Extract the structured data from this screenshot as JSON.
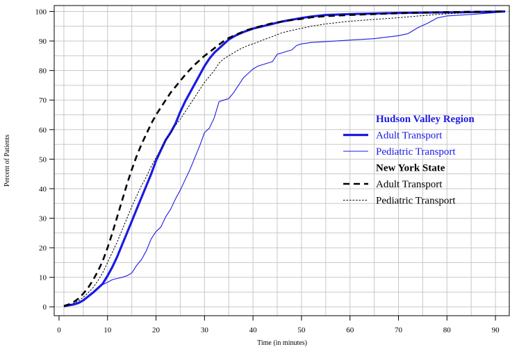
{
  "chart_data": {
    "type": "line",
    "title": "",
    "xlabel": "Time (in minutes)",
    "ylabel": "Percent of Patients",
    "xlim": [
      -1,
      93
    ],
    "ylim": [
      -3,
      102
    ],
    "xticks": [
      0,
      10,
      20,
      30,
      40,
      50,
      60,
      70,
      80,
      90
    ],
    "yticks": [
      0,
      10,
      20,
      30,
      40,
      50,
      60,
      70,
      80,
      90,
      100
    ],
    "xtick_labels": [
      "0",
      "10",
      "20",
      "30",
      "40",
      "50",
      "60",
      "70",
      "80",
      "90"
    ],
    "ytick_labels": [
      "0",
      "10",
      "20",
      "30",
      "40",
      "50",
      "60",
      "70",
      "80",
      "90",
      "100"
    ],
    "vgrid": [
      1,
      5,
      10,
      15,
      20,
      25,
      30,
      35,
      40,
      45,
      50,
      55,
      60,
      65,
      70,
      75,
      80,
      85,
      90
    ],
    "hgrid": [
      0,
      5,
      10,
      15,
      20,
      25,
      30,
      35,
      40,
      45,
      50,
      55,
      60,
      65,
      70,
      75,
      80,
      85,
      90,
      95,
      100
    ],
    "grid": true,
    "legend_position": "right",
    "legend": {
      "groups": [
        {
          "heading": "Hudson Valley Region",
          "heading_color": "#1a1ae6",
          "entries": [
            {
              "label": "Adult Transport",
              "series": 0
            },
            {
              "label": "Pediatric Transport",
              "series": 1
            }
          ]
        },
        {
          "heading": "New York State",
          "heading_color": "#000000",
          "entries": [
            {
              "label": "Adult Transport",
              "series": 2
            },
            {
              "label": "Pediatric Transport",
              "series": 3
            }
          ]
        }
      ]
    },
    "series": [
      {
        "color": "#1a1ae6",
        "width": 3.2,
        "dash": "",
        "points": [
          [
            1,
            0.2
          ],
          [
            2,
            0.5
          ],
          [
            3,
            0.8
          ],
          [
            4,
            1.3
          ],
          [
            5,
            2.2
          ],
          [
            6,
            3.5
          ],
          [
            7,
            4.8
          ],
          [
            8,
            6.3
          ],
          [
            9,
            7.8
          ],
          [
            10,
            10.5
          ],
          [
            11,
            13.5
          ],
          [
            12,
            17
          ],
          [
            13,
            21
          ],
          [
            14,
            25
          ],
          [
            15,
            29
          ],
          [
            16,
            33
          ],
          [
            17,
            37
          ],
          [
            18,
            41
          ],
          [
            19,
            45
          ],
          [
            20,
            49.5
          ],
          [
            21,
            53
          ],
          [
            22,
            56.5
          ],
          [
            23,
            59
          ],
          [
            24,
            62
          ],
          [
            25,
            66
          ],
          [
            26,
            69.5
          ],
          [
            27,
            72.5
          ],
          [
            28,
            75.5
          ],
          [
            29,
            78.5
          ],
          [
            30,
            81.5
          ],
          [
            31,
            84
          ],
          [
            32,
            86
          ],
          [
            33,
            87.5
          ],
          [
            34,
            89
          ],
          [
            35,
            90.5
          ],
          [
            36,
            91.5
          ],
          [
            37,
            92.3
          ],
          [
            38,
            93
          ],
          [
            39,
            93.6
          ],
          [
            40,
            94.2
          ],
          [
            42,
            95
          ],
          [
            44,
            95.8
          ],
          [
            46,
            96.6
          ],
          [
            48,
            97.2
          ],
          [
            50,
            97.8
          ],
          [
            52,
            98.3
          ],
          [
            55,
            98.8
          ],
          [
            60,
            99.1
          ],
          [
            65,
            99.3
          ],
          [
            70,
            99.5
          ],
          [
            75,
            99.6
          ],
          [
            80,
            99.7
          ],
          [
            85,
            99.8
          ],
          [
            90,
            99.9
          ],
          [
            92,
            100
          ]
        ]
      },
      {
        "color": "#1a1ae6",
        "width": 1.1,
        "dash": "",
        "points": [
          [
            1,
            0.1
          ],
          [
            2,
            0.3
          ],
          [
            3,
            0.6
          ],
          [
            4,
            1.2
          ],
          [
            5,
            2.2
          ],
          [
            6,
            3.5
          ],
          [
            7,
            4.5
          ],
          [
            8,
            6
          ],
          [
            9,
            7.5
          ],
          [
            10,
            8.3
          ],
          [
            11,
            9.2
          ],
          [
            12,
            9.6
          ],
          [
            13,
            10
          ],
          [
            14,
            10.5
          ],
          [
            15,
            11.5
          ],
          [
            16,
            14
          ],
          [
            17,
            16
          ],
          [
            18,
            19
          ],
          [
            19,
            23
          ],
          [
            20,
            25.5
          ],
          [
            21,
            27
          ],
          [
            22,
            30.5
          ],
          [
            23,
            33
          ],
          [
            24,
            36.5
          ],
          [
            25,
            39.5
          ],
          [
            26,
            43
          ],
          [
            27,
            46.5
          ],
          [
            28,
            50.5
          ],
          [
            29,
            54.5
          ],
          [
            30,
            59
          ],
          [
            31,
            60.5
          ],
          [
            32,
            64
          ],
          [
            33,
            69.5
          ],
          [
            34,
            70
          ],
          [
            35,
            70.5
          ],
          [
            36,
            72.5
          ],
          [
            37,
            75
          ],
          [
            38,
            77.5
          ],
          [
            39,
            79
          ],
          [
            40,
            80.5
          ],
          [
            41,
            81.5
          ],
          [
            42,
            82
          ],
          [
            43,
            82.5
          ],
          [
            44,
            83
          ],
          [
            45,
            85.5
          ],
          [
            46,
            86
          ],
          [
            47,
            86.5
          ],
          [
            48,
            87
          ],
          [
            49,
            88.5
          ],
          [
            50,
            89
          ],
          [
            52,
            89.5
          ],
          [
            55,
            89.8
          ],
          [
            60,
            90.3
          ],
          [
            65,
            90.8
          ],
          [
            70,
            91.8
          ],
          [
            72,
            92.5
          ],
          [
            74,
            94.5
          ],
          [
            76,
            96
          ],
          [
            78,
            97.8
          ],
          [
            80,
            98.5
          ],
          [
            85,
            99
          ],
          [
            90,
            99.6
          ],
          [
            92,
            100
          ]
        ]
      },
      {
        "color": "#000000",
        "width": 2.6,
        "dash": "9 6",
        "points": [
          [
            1,
            0.3
          ],
          [
            2,
            0.8
          ],
          [
            3,
            1.6
          ],
          [
            4,
            2.8
          ],
          [
            5,
            4.5
          ],
          [
            6,
            6.5
          ],
          [
            7,
            9
          ],
          [
            8,
            12
          ],
          [
            9,
            15.5
          ],
          [
            10,
            20
          ],
          [
            11,
            25
          ],
          [
            12,
            30.5
          ],
          [
            13,
            36
          ],
          [
            14,
            41.5
          ],
          [
            15,
            46.5
          ],
          [
            16,
            51
          ],
          [
            17,
            55
          ],
          [
            18,
            58.5
          ],
          [
            19,
            62
          ],
          [
            20,
            65
          ],
          [
            21,
            67.5
          ],
          [
            22,
            70
          ],
          [
            23,
            72.5
          ],
          [
            24,
            74.5
          ],
          [
            25,
            76.5
          ],
          [
            26,
            78.5
          ],
          [
            27,
            80.3
          ],
          [
            28,
            82
          ],
          [
            29,
            83.5
          ],
          [
            30,
            85
          ],
          [
            31,
            86.2
          ],
          [
            32,
            87.5
          ],
          [
            33,
            88.8
          ],
          [
            34,
            90
          ],
          [
            35,
            91
          ],
          [
            36,
            91.8
          ],
          [
            37,
            92.5
          ],
          [
            38,
            93.2
          ],
          [
            39,
            93.8
          ],
          [
            40,
            94.3
          ],
          [
            42,
            95.2
          ],
          [
            44,
            96
          ],
          [
            46,
            96.6
          ],
          [
            48,
            97.1
          ],
          [
            50,
            97.5
          ],
          [
            52,
            98
          ],
          [
            55,
            98.4
          ],
          [
            60,
            98.8
          ],
          [
            65,
            99.1
          ],
          [
            70,
            99.4
          ],
          [
            75,
            99.6
          ],
          [
            80,
            99.8
          ],
          [
            85,
            99.9
          ],
          [
            92,
            100
          ]
        ]
      },
      {
        "color": "#000000",
        "width": 1.0,
        "dash": "2.5 2",
        "points": [
          [
            1,
            0.2
          ],
          [
            2,
            0.6
          ],
          [
            3,
            1.2
          ],
          [
            4,
            2
          ],
          [
            5,
            3.2
          ],
          [
            6,
            4.8
          ],
          [
            7,
            6.5
          ],
          [
            8,
            8.8
          ],
          [
            9,
            11.5
          ],
          [
            10,
            15
          ],
          [
            11,
            18.5
          ],
          [
            12,
            22
          ],
          [
            13,
            26
          ],
          [
            14,
            30
          ],
          [
            15,
            34
          ],
          [
            16,
            37.5
          ],
          [
            17,
            41
          ],
          [
            18,
            44
          ],
          [
            19,
            47.5
          ],
          [
            20,
            50.5
          ],
          [
            21,
            53.5
          ],
          [
            22,
            56.5
          ],
          [
            23,
            59
          ],
          [
            24,
            61.5
          ],
          [
            25,
            63.5
          ],
          [
            26,
            66
          ],
          [
            27,
            68.5
          ],
          [
            28,
            71
          ],
          [
            29,
            73.5
          ],
          [
            30,
            76
          ],
          [
            31,
            78
          ],
          [
            32,
            80
          ],
          [
            33,
            82.5
          ],
          [
            34,
            84
          ],
          [
            35,
            85
          ],
          [
            36,
            86
          ],
          [
            37,
            87
          ],
          [
            38,
            87.8
          ],
          [
            39,
            88.5
          ],
          [
            40,
            89
          ],
          [
            42,
            90.3
          ],
          [
            44,
            91.5
          ],
          [
            46,
            92.8
          ],
          [
            48,
            93.6
          ],
          [
            50,
            94.3
          ],
          [
            52,
            95
          ],
          [
            55,
            95.8
          ],
          [
            60,
            96.7
          ],
          [
            65,
            97.3
          ],
          [
            70,
            97.9
          ],
          [
            75,
            98.6
          ],
          [
            80,
            99.2
          ],
          [
            85,
            99.6
          ],
          [
            92,
            100
          ]
        ]
      }
    ]
  }
}
